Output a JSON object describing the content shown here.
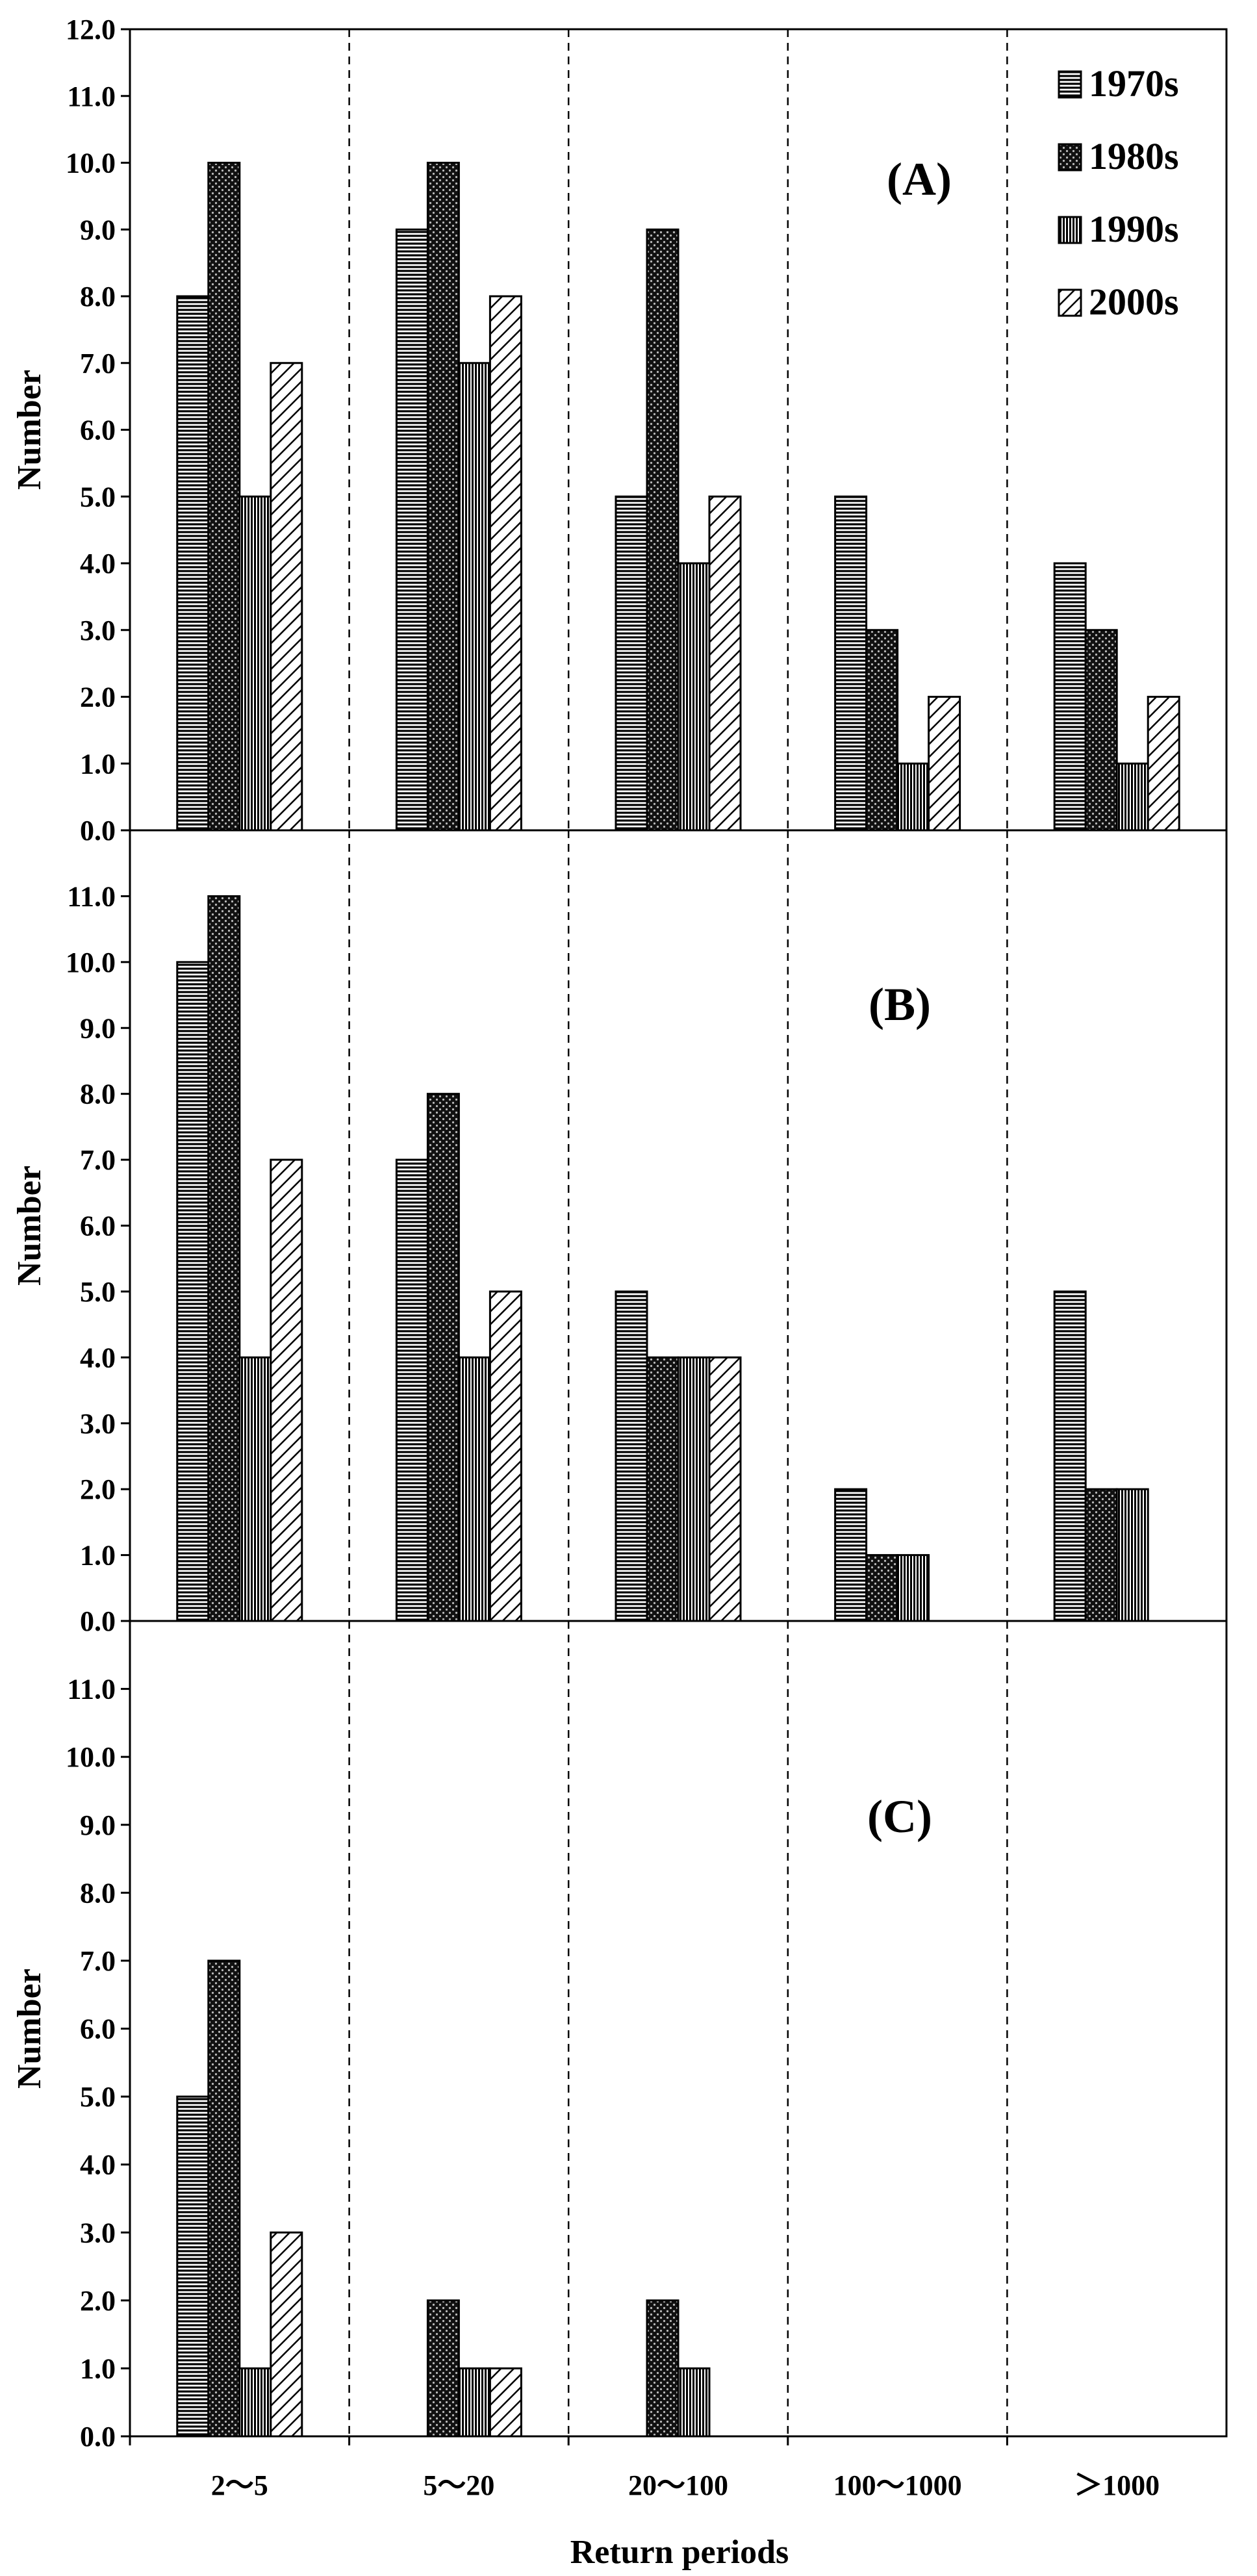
{
  "chart_data": {
    "type": "bar",
    "categories": [
      "2～5",
      "5～20",
      "20～100",
      "100～1000",
      "＞1000"
    ],
    "xlabel": "Return periods",
    "ylabel": "Number",
    "legend": {
      "placement": "top-right",
      "entries": [
        "1970s",
        "1980s",
        "1990s",
        "2000s"
      ]
    },
    "series_patterns": [
      "horizontal-lines",
      "crosshatch-dark",
      "vertical-lines",
      "diagonal-lines"
    ],
    "grid": false,
    "category_separators": "dashed-vertical",
    "panels": [
      {
        "label": "(A)",
        "ylim": [
          0,
          12
        ],
        "yticks": [
          "0.0",
          "1.0",
          "2.0",
          "3.0",
          "4.0",
          "5.0",
          "6.0",
          "7.0",
          "8.0",
          "9.0",
          "10.0",
          "11.0",
          "12.0"
        ],
        "series": [
          {
            "name": "1970s",
            "values": [
              8,
              9,
              5,
              5,
              4
            ]
          },
          {
            "name": "1980s",
            "values": [
              10,
              10,
              9,
              3,
              3
            ]
          },
          {
            "name": "1990s",
            "values": [
              5,
              7,
              4,
              1,
              1
            ]
          },
          {
            "name": "2000s",
            "values": [
              7,
              8,
              5,
              2,
              2
            ]
          }
        ]
      },
      {
        "label": "(B)",
        "ylim": [
          0,
          12
        ],
        "yticks": [
          "0.0",
          "1.0",
          "2.0",
          "3.0",
          "4.0",
          "5.0",
          "6.0",
          "7.0",
          "8.0",
          "9.0",
          "10.0",
          "11.0"
        ],
        "series": [
          {
            "name": "1970s",
            "values": [
              10,
              7,
              5,
              2,
              5
            ]
          },
          {
            "name": "1980s",
            "values": [
              11,
              8,
              4,
              1,
              2
            ]
          },
          {
            "name": "1990s",
            "values": [
              4,
              4,
              4,
              1,
              2
            ]
          },
          {
            "name": "2000s",
            "values": [
              7,
              5,
              4,
              0,
              0
            ]
          }
        ]
      },
      {
        "label": "(C)",
        "ylim": [
          0,
          12
        ],
        "yticks": [
          "0.0",
          "1.0",
          "2.0",
          "3.0",
          "4.0",
          "5.0",
          "6.0",
          "7.0",
          "8.0",
          "9.0",
          "10.0",
          "11.0"
        ],
        "series": [
          {
            "name": "1970s",
            "values": [
              5,
              0,
              0,
              0,
              0
            ]
          },
          {
            "name": "1980s",
            "values": [
              7,
              2,
              2,
              0,
              0
            ]
          },
          {
            "name": "1990s",
            "values": [
              1,
              1,
              1,
              0,
              0
            ]
          },
          {
            "name": "2000s",
            "values": [
              3,
              1,
              0,
              0,
              0
            ]
          }
        ]
      }
    ]
  }
}
